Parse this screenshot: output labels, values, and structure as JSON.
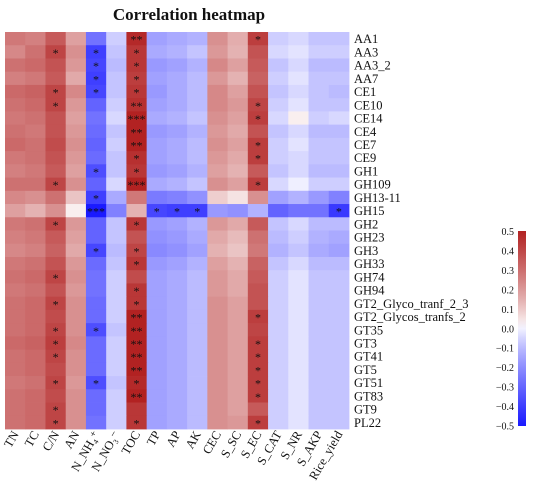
{
  "chart_data": {
    "type": "heatmap",
    "title": "Correlation heatmap",
    "columns": [
      "TN",
      "TC",
      "C/N",
      "AN",
      "N_NH₄⁺",
      "N_NO₃⁻",
      "TOC",
      "TP",
      "AP",
      "AK",
      "CEC",
      "S_SC",
      "S_EC",
      "S_CAT",
      "S_NR",
      "S_AKP",
      "Rice_yield"
    ],
    "rows": [
      "AA1",
      "AA3",
      "AA3_2",
      "AA7",
      "CE1",
      "CE10",
      "CE14",
      "CE4",
      "CE7",
      "CE9",
      "GH1",
      "GH109",
      "GH13-11",
      "GH15",
      "GH2",
      "GH23",
      "GH3",
      "GH33",
      "GH74",
      "GH94",
      "GT2_Glyco_tranf_2_3",
      "GT2_Glycos_tranfs_2",
      "GT35",
      "GT3",
      "GT41",
      "GT5",
      "GT51",
      "GT83",
      "GT9",
      "PL22"
    ],
    "values": [
      [
        0.28,
        0.26,
        0.36,
        0.18,
        -0.3,
        -0.08,
        0.5,
        -0.18,
        -0.16,
        -0.14,
        0.22,
        0.15,
        0.44,
        -0.08,
        -0.06,
        -0.1,
        -0.1
      ],
      [
        0.24,
        0.3,
        0.42,
        0.22,
        -0.44,
        -0.1,
        0.46,
        -0.16,
        -0.14,
        -0.1,
        0.2,
        0.14,
        0.38,
        -0.06,
        -0.04,
        -0.08,
        -0.08
      ],
      [
        0.3,
        0.32,
        0.38,
        0.2,
        -0.42,
        -0.12,
        0.46,
        -0.2,
        -0.18,
        -0.14,
        0.24,
        0.18,
        0.36,
        -0.1,
        -0.06,
        -0.12,
        -0.12
      ],
      [
        0.26,
        0.28,
        0.36,
        0.16,
        -0.44,
        -0.1,
        0.44,
        -0.18,
        -0.16,
        -0.12,
        0.2,
        0.14,
        0.34,
        -0.08,
        -0.04,
        -0.1,
        -0.1
      ],
      [
        0.32,
        0.34,
        0.42,
        0.24,
        -0.42,
        -0.1,
        0.46,
        -0.2,
        -0.16,
        -0.12,
        0.24,
        0.18,
        0.38,
        -0.1,
        -0.06,
        -0.1,
        -0.12
      ],
      [
        0.3,
        0.32,
        0.42,
        0.2,
        -0.34,
        -0.08,
        0.48,
        -0.18,
        -0.16,
        -0.12,
        0.24,
        0.2,
        0.42,
        -0.08,
        -0.04,
        -0.1,
        -0.1
      ],
      [
        0.28,
        0.3,
        0.38,
        0.18,
        -0.3,
        -0.06,
        0.52,
        -0.16,
        -0.14,
        -0.1,
        0.22,
        0.18,
        0.44,
        -0.06,
        0.02,
        -0.08,
        -0.06
      ],
      [
        0.3,
        0.28,
        0.38,
        0.2,
        -0.32,
        -0.1,
        0.52,
        -0.2,
        -0.18,
        -0.14,
        0.2,
        0.16,
        0.38,
        -0.1,
        -0.06,
        -0.12,
        -0.12
      ],
      [
        0.32,
        0.3,
        0.4,
        0.22,
        -0.34,
        -0.08,
        0.52,
        -0.18,
        -0.16,
        -0.12,
        0.22,
        0.18,
        0.44,
        -0.08,
        -0.04,
        -0.1,
        -0.1
      ],
      [
        0.28,
        0.3,
        0.38,
        0.2,
        -0.32,
        -0.1,
        0.48,
        -0.18,
        -0.16,
        -0.12,
        0.2,
        0.16,
        0.44,
        -0.08,
        -0.06,
        -0.1,
        -0.1
      ],
      [
        0.26,
        0.28,
        0.36,
        0.18,
        -0.4,
        -0.1,
        0.46,
        -0.2,
        -0.18,
        -0.14,
        0.18,
        0.14,
        0.36,
        -0.1,
        -0.06,
        -0.12,
        -0.12
      ],
      [
        0.3,
        0.3,
        0.42,
        0.22,
        -0.34,
        -0.06,
        0.52,
        -0.16,
        -0.14,
        -0.1,
        0.22,
        0.18,
        0.44,
        -0.06,
        -0.02,
        -0.08,
        -0.08
      ],
      [
        0.24,
        0.22,
        0.3,
        0.1,
        -0.44,
        -0.16,
        0.28,
        -0.28,
        -0.26,
        -0.22,
        0.08,
        0.04,
        0.22,
        -0.18,
        -0.14,
        -0.2,
        -0.26
      ],
      [
        0.18,
        0.14,
        0.22,
        0.02,
        -0.56,
        -0.26,
        0.14,
        -0.42,
        -0.44,
        -0.44,
        -0.2,
        -0.22,
        -0.14,
        -0.34,
        -0.3,
        -0.3,
        -0.46
      ],
      [
        0.28,
        0.3,
        0.42,
        0.2,
        -0.34,
        -0.1,
        0.46,
        -0.2,
        -0.18,
        -0.14,
        0.2,
        0.16,
        0.36,
        -0.1,
        -0.06,
        -0.12,
        -0.12
      ],
      [
        0.26,
        0.28,
        0.36,
        0.18,
        -0.34,
        -0.1,
        0.38,
        -0.22,
        -0.2,
        -0.16,
        0.16,
        0.12,
        0.3,
        -0.12,
        -0.08,
        -0.14,
        -0.16
      ],
      [
        0.24,
        0.26,
        0.34,
        0.16,
        -0.42,
        -0.12,
        0.42,
        -0.24,
        -0.22,
        -0.18,
        0.14,
        0.1,
        0.28,
        -0.14,
        -0.1,
        -0.16,
        -0.18
      ],
      [
        0.28,
        0.3,
        0.38,
        0.2,
        -0.32,
        -0.1,
        0.46,
        -0.2,
        -0.18,
        -0.14,
        0.18,
        0.14,
        0.34,
        -0.1,
        -0.06,
        -0.12,
        -0.12
      ],
      [
        0.3,
        0.32,
        0.42,
        0.22,
        -0.3,
        -0.08,
        0.4,
        -0.18,
        -0.16,
        -0.12,
        0.2,
        0.16,
        0.36,
        -0.08,
        -0.04,
        -0.1,
        -0.1
      ],
      [
        0.28,
        0.3,
        0.38,
        0.2,
        -0.3,
        -0.08,
        0.46,
        -0.18,
        -0.16,
        -0.12,
        0.2,
        0.16,
        0.38,
        -0.08,
        -0.04,
        -0.1,
        -0.1
      ],
      [
        0.3,
        0.32,
        0.42,
        0.22,
        -0.32,
        -0.08,
        0.46,
        -0.18,
        -0.16,
        -0.12,
        0.22,
        0.18,
        0.38,
        -0.08,
        -0.04,
        -0.1,
        -0.1
      ],
      [
        0.3,
        0.32,
        0.4,
        0.22,
        -0.32,
        -0.08,
        0.52,
        -0.18,
        -0.16,
        -0.12,
        0.22,
        0.18,
        0.44,
        -0.08,
        -0.04,
        -0.1,
        -0.1
      ],
      [
        0.3,
        0.32,
        0.42,
        0.22,
        -0.4,
        -0.1,
        0.52,
        -0.18,
        -0.16,
        -0.12,
        0.22,
        0.18,
        0.42,
        -0.08,
        -0.04,
        -0.1,
        -0.1
      ],
      [
        0.32,
        0.34,
        0.44,
        0.24,
        -0.32,
        -0.08,
        0.52,
        -0.18,
        -0.16,
        -0.12,
        0.22,
        0.18,
        0.44,
        -0.08,
        -0.04,
        -0.1,
        -0.1
      ],
      [
        0.3,
        0.32,
        0.42,
        0.22,
        -0.32,
        -0.08,
        0.52,
        -0.18,
        -0.16,
        -0.12,
        0.22,
        0.18,
        0.44,
        -0.08,
        -0.04,
        -0.1,
        -0.1
      ],
      [
        0.3,
        0.32,
        0.4,
        0.22,
        -0.32,
        -0.08,
        0.52,
        -0.18,
        -0.16,
        -0.12,
        0.22,
        0.18,
        0.44,
        -0.08,
        -0.04,
        -0.1,
        -0.1
      ],
      [
        0.28,
        0.3,
        0.42,
        0.2,
        -0.4,
        -0.1,
        0.5,
        -0.18,
        -0.16,
        -0.12,
        0.22,
        0.18,
        0.44,
        -0.08,
        -0.04,
        -0.1,
        -0.1
      ],
      [
        0.3,
        0.32,
        0.4,
        0.22,
        -0.32,
        -0.08,
        0.52,
        -0.18,
        -0.16,
        -0.12,
        0.22,
        0.18,
        0.44,
        -0.08,
        -0.04,
        -0.1,
        -0.1
      ],
      [
        0.3,
        0.32,
        0.42,
        0.22,
        -0.32,
        -0.08,
        0.46,
        -0.18,
        -0.16,
        -0.12,
        0.22,
        0.18,
        0.36,
        -0.08,
        -0.04,
        -0.1,
        -0.1
      ],
      [
        0.3,
        0.32,
        0.42,
        0.22,
        -0.3,
        -0.08,
        0.46,
        -0.18,
        -0.16,
        -0.12,
        0.22,
        0.2,
        0.44,
        -0.08,
        -0.04,
        -0.1,
        -0.1
      ]
    ],
    "significance": [
      [
        "",
        "",
        "",
        "",
        "",
        "",
        "**",
        "",
        "",
        "",
        "",
        "",
        "*",
        "",
        "",
        "",
        ""
      ],
      [
        "",
        "",
        "*",
        "",
        "*",
        "",
        "*",
        "",
        "",
        "",
        "",
        "",
        "",
        "",
        "",
        "",
        ""
      ],
      [
        "",
        "",
        "",
        "",
        "*",
        "",
        "*",
        "",
        "",
        "",
        "",
        "",
        "",
        "",
        "",
        "",
        ""
      ],
      [
        "",
        "",
        "",
        "",
        "*",
        "",
        "*",
        "",
        "",
        "",
        "",
        "",
        "",
        "",
        "",
        "",
        ""
      ],
      [
        "",
        "",
        "*",
        "",
        "*",
        "",
        "*",
        "",
        "",
        "",
        "",
        "",
        "",
        "",
        "",
        "",
        ""
      ],
      [
        "",
        "",
        "*",
        "",
        "",
        "",
        "**",
        "",
        "",
        "",
        "",
        "",
        "*",
        "",
        "",
        "",
        ""
      ],
      [
        "",
        "",
        "",
        "",
        "",
        "",
        "***",
        "",
        "",
        "",
        "",
        "",
        "*",
        "",
        "",
        "",
        ""
      ],
      [
        "",
        "",
        "",
        "",
        "",
        "",
        "**",
        "",
        "",
        "",
        "",
        "",
        "",
        "",
        "",
        "",
        ""
      ],
      [
        "",
        "",
        "",
        "",
        "",
        "",
        "**",
        "",
        "",
        "",
        "",
        "",
        "*",
        "",
        "",
        "",
        ""
      ],
      [
        "",
        "",
        "",
        "",
        "",
        "",
        "*",
        "",
        "",
        "",
        "",
        "",
        "*",
        "",
        "",
        "",
        ""
      ],
      [
        "",
        "",
        "",
        "",
        "*",
        "",
        "*",
        "",
        "",
        "",
        "",
        "",
        "",
        "",
        "",
        "",
        ""
      ],
      [
        "",
        "",
        "*",
        "",
        "",
        "",
        "***",
        "",
        "",
        "",
        "",
        "",
        "*",
        "",
        "",
        "",
        ""
      ],
      [
        "",
        "",
        "",
        "",
        "*",
        "",
        "",
        "",
        "",
        "",
        "",
        "",
        "",
        "",
        "",
        "",
        ""
      ],
      [
        "",
        "",
        "",
        "",
        "***",
        "",
        "",
        "*",
        "*",
        "*",
        "",
        "",
        "",
        "",
        "",
        "",
        "*"
      ],
      [
        "",
        "",
        "*",
        "",
        "",
        "",
        "*",
        "",
        "",
        "",
        "",
        "",
        "",
        "",
        "",
        "",
        ""
      ],
      [
        "",
        "",
        "",
        "",
        "",
        "",
        "",
        "",
        "",
        "",
        "",
        "",
        "",
        "",
        "",
        "",
        ""
      ],
      [
        "",
        "",
        "",
        "",
        "*",
        "",
        "*",
        "",
        "",
        "",
        "",
        "",
        "",
        "",
        "",
        "",
        ""
      ],
      [
        "",
        "",
        "",
        "",
        "",
        "",
        "*",
        "",
        "",
        "",
        "",
        "",
        "",
        "",
        "",
        "",
        ""
      ],
      [
        "",
        "",
        "*",
        "",
        "",
        "",
        "",
        "",
        "",
        "",
        "",
        "",
        "",
        "",
        "",
        "",
        ""
      ],
      [
        "",
        "",
        "",
        "",
        "",
        "",
        "*",
        "",
        "",
        "",
        "",
        "",
        "",
        "",
        "",
        "",
        ""
      ],
      [
        "",
        "",
        "*",
        "",
        "",
        "",
        "*",
        "",
        "",
        "",
        "",
        "",
        "",
        "",
        "",
        "",
        ""
      ],
      [
        "",
        "",
        "",
        "",
        "",
        "",
        "**",
        "",
        "",
        "",
        "",
        "",
        "*",
        "",
        "",
        "",
        ""
      ],
      [
        "",
        "",
        "*",
        "",
        "*",
        "",
        "**",
        "",
        "",
        "",
        "",
        "",
        "",
        "",
        "",
        "",
        ""
      ],
      [
        "",
        "",
        "*",
        "",
        "",
        "",
        "**",
        "",
        "",
        "",
        "",
        "",
        "*",
        "",
        "",
        "",
        ""
      ],
      [
        "",
        "",
        "*",
        "",
        "",
        "",
        "**",
        "",
        "",
        "",
        "",
        "",
        "*",
        "",
        "",
        "",
        ""
      ],
      [
        "",
        "",
        "",
        "",
        "",
        "",
        "**",
        "",
        "",
        "",
        "",
        "",
        "*",
        "",
        "",
        "",
        ""
      ],
      [
        "",
        "",
        "*",
        "",
        "*",
        "",
        "*",
        "",
        "",
        "",
        "",
        "",
        "*",
        "",
        "",
        "",
        ""
      ],
      [
        "",
        "",
        "",
        "",
        "",
        "",
        "**",
        "",
        "",
        "",
        "",
        "",
        "*",
        "",
        "",
        "",
        ""
      ],
      [
        "",
        "",
        "*",
        "",
        "",
        "",
        "",
        "",
        "",
        "",
        "",
        "",
        "",
        "",
        "",
        "",
        ""
      ],
      [
        "",
        "",
        "*",
        "",
        "",
        "",
        "*",
        "",
        "",
        "",
        "",
        "",
        "*",
        "",
        "",
        "",
        ""
      ]
    ],
    "colorbar": {
      "ticks": [
        "0.5",
        "0.4",
        "0.3",
        "0.2",
        "0.1",
        "0.0",
        "−0.1",
        "−0.2",
        "−0.3",
        "−0.4",
        "−0.5"
      ],
      "range": [
        -0.55,
        0.52
      ],
      "colors": {
        "low": "#1a1aff",
        "mid": "#ffffff",
        "high": "#b22222"
      }
    }
  }
}
